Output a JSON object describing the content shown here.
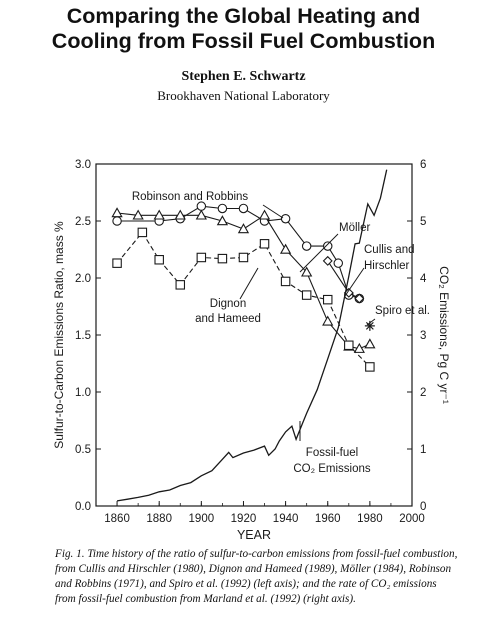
{
  "header": {
    "title_line1": "Comparing the Global Heating and",
    "title_line2": "Cooling from Fossil Fuel Combustion",
    "author": "Stephen E. Schwartz",
    "affiliation": "Brookhaven National Laboratory"
  },
  "chart_data": {
    "type": "line",
    "xlabel": "YEAR",
    "ylabel_left": "Sulfur-to-Carbon Emissions Ratio, mass %",
    "ylabel_right": "CO₂ Emissions, Pg C yr⁻¹",
    "xlim": [
      1850,
      2000
    ],
    "ylim_left": [
      0.0,
      3.0
    ],
    "ylim_right": [
      0,
      6
    ],
    "x_ticks": [
      "1860",
      "1880",
      "1900",
      "1920",
      "1940",
      "1960",
      "1980",
      "2000"
    ],
    "y_ticks_left": [
      "0.0",
      "0.5",
      "1.0",
      "1.5",
      "2.0",
      "2.5",
      "3.0"
    ],
    "y_ticks_right": [
      "0",
      "1",
      "2",
      "3",
      "4",
      "5",
      "6"
    ],
    "grid": false,
    "series": [
      {
        "name": "Robinson and Robbins",
        "marker": "circle",
        "dash": "solid",
        "x": [
          1860,
          1880,
          1890,
          1900,
          1910,
          1920,
          1930,
          1940,
          1950,
          1960,
          1965,
          1970,
          1975
        ],
        "y": [
          2.5,
          2.5,
          2.52,
          2.63,
          2.61,
          2.61,
          2.5,
          2.52,
          2.28,
          2.28,
          2.13,
          1.85,
          1.82
        ]
      },
      {
        "name": "Möller",
        "marker": "triangle",
        "dash": "solid",
        "x": [
          1860,
          1870,
          1880,
          1890,
          1900,
          1910,
          1920,
          1930,
          1940,
          1950,
          1960,
          1970,
          1975,
          1980
        ],
        "y": [
          2.57,
          2.55,
          2.55,
          2.55,
          2.55,
          2.5,
          2.43,
          2.55,
          2.25,
          2.05,
          1.62,
          1.4,
          1.38,
          1.42
        ]
      },
      {
        "name": "Cullis and Hirschler",
        "marker": "diamond",
        "dash": "solid",
        "x": [
          1960,
          1970,
          1975
        ],
        "y": [
          2.15,
          1.87,
          1.82
        ]
      },
      {
        "name": "Dignon and Hameed",
        "marker": "square",
        "dash": "dashed",
        "x": [
          1860,
          1872,
          1880,
          1890,
          1900,
          1910,
          1920,
          1930,
          1940,
          1950,
          1960,
          1970,
          1980
        ],
        "y": [
          2.13,
          2.4,
          2.16,
          1.94,
          2.18,
          2.17,
          2.18,
          2.3,
          1.97,
          1.85,
          1.81,
          1.41,
          1.22
        ]
      },
      {
        "name": "Spiro et al.",
        "marker": "star",
        "dash": "none",
        "x": [
          1980
        ],
        "y": [
          1.58
        ]
      },
      {
        "name": "Fossil-fuel CO₂ Emissions",
        "axis": "right",
        "marker": "none",
        "dash": "solid",
        "x": [
          1860,
          1865,
          1870,
          1875,
          1880,
          1885,
          1890,
          1895,
          1900,
          1905,
          1910,
          1913,
          1915,
          1920,
          1925,
          1930,
          1932,
          1935,
          1937,
          1940,
          1943,
          1945,
          1948,
          1950,
          1955,
          1960,
          1965,
          1970,
          1973,
          1975,
          1979,
          1982,
          1985,
          1988
        ],
        "y": [
          0.09,
          0.12,
          0.15,
          0.19,
          0.25,
          0.28,
          0.36,
          0.41,
          0.53,
          0.62,
          0.82,
          0.94,
          0.85,
          0.93,
          0.98,
          1.05,
          0.89,
          1.0,
          1.14,
          1.3,
          1.4,
          1.17,
          1.45,
          1.63,
          2.04,
          2.58,
          3.13,
          4.03,
          4.6,
          4.61,
          5.3,
          5.1,
          5.4,
          5.9
        ]
      }
    ],
    "annotations": [
      {
        "text": "Robinson and Robbins"
      },
      {
        "text": "Möller"
      },
      {
        "text": "Cullis and"
      },
      {
        "text": "Hirschler"
      },
      {
        "text": "Dignon"
      },
      {
        "text": "and Hameed"
      },
      {
        "text": "Spiro et al."
      },
      {
        "text": "Fossil-fuel"
      },
      {
        "text": "CO₂ Emissions"
      }
    ]
  },
  "caption": "Fig. 1. Time history of the ratio of sulfur-to-carbon emissions from fossil-fuel combustion, from Cullis and Hirschler (1980), Dignon and Hameed (1989), Möller (1984), Robinson and Robbins (1971), and Spiro et al. (1992) (left axis); and the rate of CO₂ emissions from fossil-fuel combustion from Marland et al. (1992) (right axis)."
}
